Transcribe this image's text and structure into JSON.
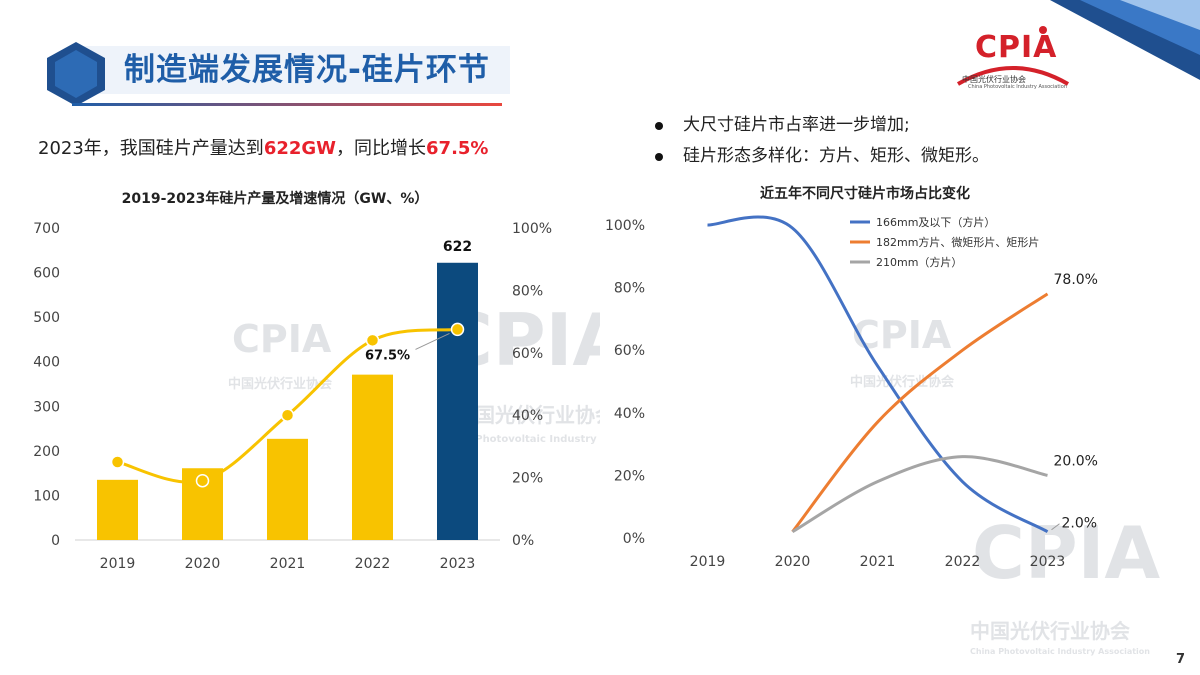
{
  "header": {
    "title": "制造端发展情况-硅片环节",
    "logo_text": "CPIA",
    "logo_subtitle": "中国光伏行业协会",
    "logo_subtitle_en": "China Photovoltaic Industry Association"
  },
  "summary": {
    "prefix": "2023年，我国硅片产量达到",
    "value1": "622GW",
    "middle": "，同比增长",
    "value2": "67.5%"
  },
  "bullets": [
    "大尺寸硅片市占率进一步增加;",
    "硅片形态多样化：方片、矩形、微矩形。"
  ],
  "page_number": "7",
  "watermark": {
    "text": "CPIA",
    "cn": "中国光伏行业协会",
    "en": "China Photovoltaic Industry Association"
  },
  "chart_data": [
    {
      "type": "bar",
      "title": "2019-2023年硅片产量及增速情况（GW、%）",
      "categories": [
        "2019",
        "2020",
        "2021",
        "2022",
        "2023"
      ],
      "series": [
        {
          "name": "",
          "type": "bar",
          "values": [
            135,
            161,
            227,
            371,
            622
          ],
          "colors": [
            "#f8c300",
            "#f8c300",
            "#f8c300",
            "#f8c300",
            "#0c4a7e"
          ],
          "axis": "left"
        },
        {
          "name": "",
          "type": "line",
          "values": [
            25,
            19,
            40,
            64,
            67.5
          ],
          "color": "#f8c300",
          "axis": "right"
        }
      ],
      "ylim": [
        0,
        700
      ],
      "yticks": [
        "0",
        "100",
        "200",
        "300",
        "400",
        "500",
        "600",
        "700"
      ],
      "y2lim": [
        0,
        100
      ],
      "y2ticks": [
        "0%",
        "20%",
        "40%",
        "60%",
        "80%",
        "100%"
      ],
      "data_labels": [
        {
          "series": 0,
          "index": 4,
          "text": "622"
        },
        {
          "series": 1,
          "index": 4,
          "text": "67.5%"
        }
      ],
      "grid": false
    },
    {
      "type": "line",
      "title": "近五年不同尺寸硅片市场占比变化",
      "categories": [
        "2019",
        "2020",
        "2021",
        "2022",
        "2023"
      ],
      "series": [
        {
          "name": "166mm及以下（方片）",
          "values": [
            100,
            99,
            55,
            18,
            2.0
          ],
          "color": "#4472c4"
        },
        {
          "name": "182mm方片、微矩形片、矩形片",
          "values": [
            null,
            2,
            37,
            60,
            78.0
          ],
          "color": "#ed7d31"
        },
        {
          "name": "210mm（方片）",
          "values": [
            null,
            2,
            18,
            26,
            20.0
          ],
          "color": "#a5a5a5"
        }
      ],
      "ylim": [
        0,
        100
      ],
      "yticks": [
        "0%",
        "20%",
        "40%",
        "60%",
        "80%",
        "100%"
      ],
      "data_labels": [
        {
          "series": 1,
          "index": 4,
          "text": "78.0%"
        },
        {
          "series": 2,
          "index": 4,
          "text": "20.0%"
        },
        {
          "series": 0,
          "index": 4,
          "text": "2.0%"
        }
      ],
      "legend": "top-right",
      "grid": false
    }
  ]
}
